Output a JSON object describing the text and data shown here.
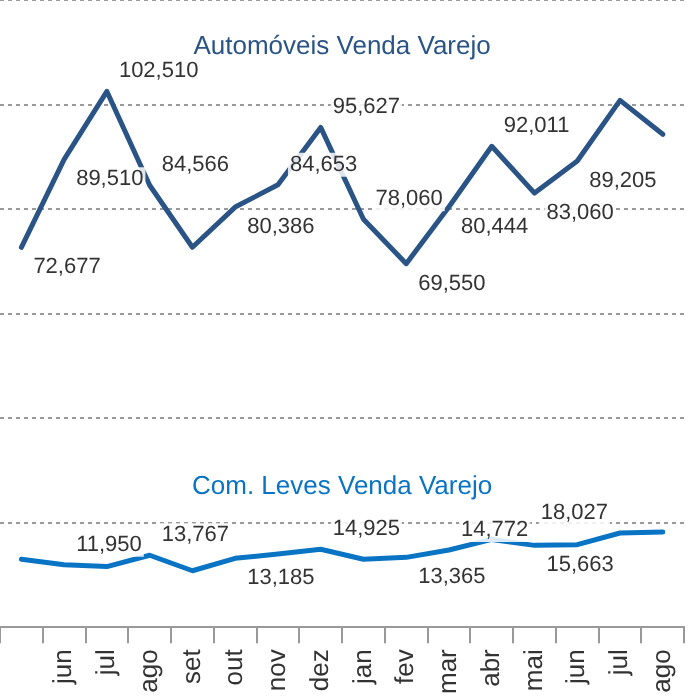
{
  "chart_data": {
    "type": "line",
    "categories": [
      null,
      "jun",
      "jul",
      "ago",
      "set",
      "out",
      "nov",
      "dez",
      "jan",
      "fev",
      "mar",
      "abr",
      "mai",
      "jun",
      "jul",
      "ago"
    ],
    "series": [
      {
        "name": "Automóveis Venda Varejo",
        "color": "#2a5485",
        "values": [
          72677,
          89510,
          102510,
          84566,
          72700,
          80386,
          84653,
          95627,
          78060,
          69550,
          80444,
          92011,
          83060,
          89205,
          100800,
          94300
        ],
        "value_labels": [
          "72,677",
          "89,510",
          "102,510",
          "84,566",
          null,
          "80,386",
          "84,653",
          "95,627",
          "78,060",
          "69,550",
          "80,444",
          "92,011",
          "83,060",
          "89,205",
          null,
          null
        ]
      },
      {
        "name": "Com. Leves Venda Varejo",
        "color": "#0a74c4",
        "values": [
          13000,
          11950,
          11600,
          13767,
          10800,
          13185,
          14000,
          14925,
          13000,
          13365,
          14772,
          16800,
          15663,
          15800,
          18027,
          18200
        ],
        "value_labels": [
          null,
          "11,950",
          null,
          "13,767",
          null,
          "13,185",
          null,
          "14,925",
          null,
          "13,365",
          "14,772",
          null,
          "15,663",
          null,
          "18,027",
          null
        ]
      }
    ],
    "ylim": [
      0,
      120000
    ],
    "yticks": [
      {
        "value": 0,
        "label": null
      },
      {
        "value": 20000,
        "label": null
      },
      {
        "value": 40000,
        "label": null
      },
      {
        "value": 60000,
        "label": null
      },
      {
        "value": 80000,
        "label": null
      },
      {
        "value": 100000,
        "label": null
      },
      {
        "value": 120000,
        "label": null
      }
    ],
    "grid": "y",
    "tick_labels": "x",
    "legend": false,
    "marker": "none",
    "line_style": "solid"
  }
}
